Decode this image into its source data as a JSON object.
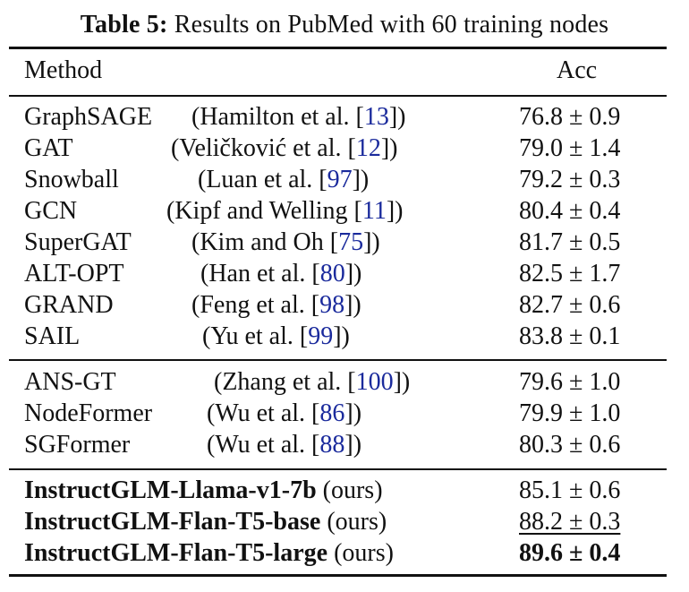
{
  "caption": {
    "label": "Table 5:",
    "text": "Results on PubMed with 60 training nodes"
  },
  "header": {
    "method": "Method",
    "acc": "Acc"
  },
  "groups": [
    {
      "rows": [
        {
          "method": "GraphSAGE",
          "cite_pre": "(Hamilton et al. [",
          "ref": "13",
          "cite_post": "])",
          "acc": "76.8 ± 0.9"
        },
        {
          "method": "GAT",
          "cite_pre": "(Veličković et al. [",
          "ref": "12",
          "cite_post": "])",
          "acc": "79.0 ± 1.4"
        },
        {
          "method": "Snowball",
          "cite_pre": "(Luan et al. [",
          "ref": "97",
          "cite_post": "])",
          "acc": "79.2 ± 0.3"
        },
        {
          "method": "GCN",
          "cite_pre": "(Kipf and Welling [",
          "ref": "11",
          "cite_post": "])",
          "acc": "80.4 ± 0.4"
        },
        {
          "method": "SuperGAT",
          "cite_pre": "(Kim and Oh [",
          "ref": "75",
          "cite_post": "])",
          "acc": "81.7 ± 0.5"
        },
        {
          "method": "ALT-OPT",
          "cite_pre": "(Han et al. [",
          "ref": "80",
          "cite_post": "])",
          "acc": "82.5 ± 1.7"
        },
        {
          "method": "GRAND",
          "cite_pre": "(Feng et al. [",
          "ref": "98",
          "cite_post": "])",
          "acc": "82.7 ± 0.6"
        },
        {
          "method": "SAIL",
          "cite_pre": "(Yu et al. [",
          "ref": "99",
          "cite_post": "])",
          "acc": "83.8 ± 0.1"
        }
      ]
    },
    {
      "rows": [
        {
          "method": "ANS-GT",
          "cite_pre": "(Zhang et al. [",
          "ref": "100",
          "cite_post": "])",
          "acc": "79.6 ± 1.0"
        },
        {
          "method": "NodeFormer",
          "cite_pre": "(Wu et al. [",
          "ref": "86",
          "cite_post": "])",
          "acc": "79.9 ± 1.0"
        },
        {
          "method": "SGFormer",
          "cite_pre": "(Wu et al. [",
          "ref": "88",
          "cite_post": "])",
          "acc": "80.3 ± 0.6"
        }
      ]
    },
    {
      "rows": [
        {
          "method": "InstructGLM-Llama-v1-7b",
          "suffix": "(ours)",
          "acc": "85.1 ± 0.6"
        },
        {
          "method": "InstructGLM-Flan-T5-base",
          "suffix": "(ours)",
          "acc": "88.2 ± 0.3"
        },
        {
          "method": "InstructGLM-Flan-T5-large",
          "suffix": "(ours)",
          "acc": "89.6 ± 0.4"
        }
      ]
    }
  ]
}
